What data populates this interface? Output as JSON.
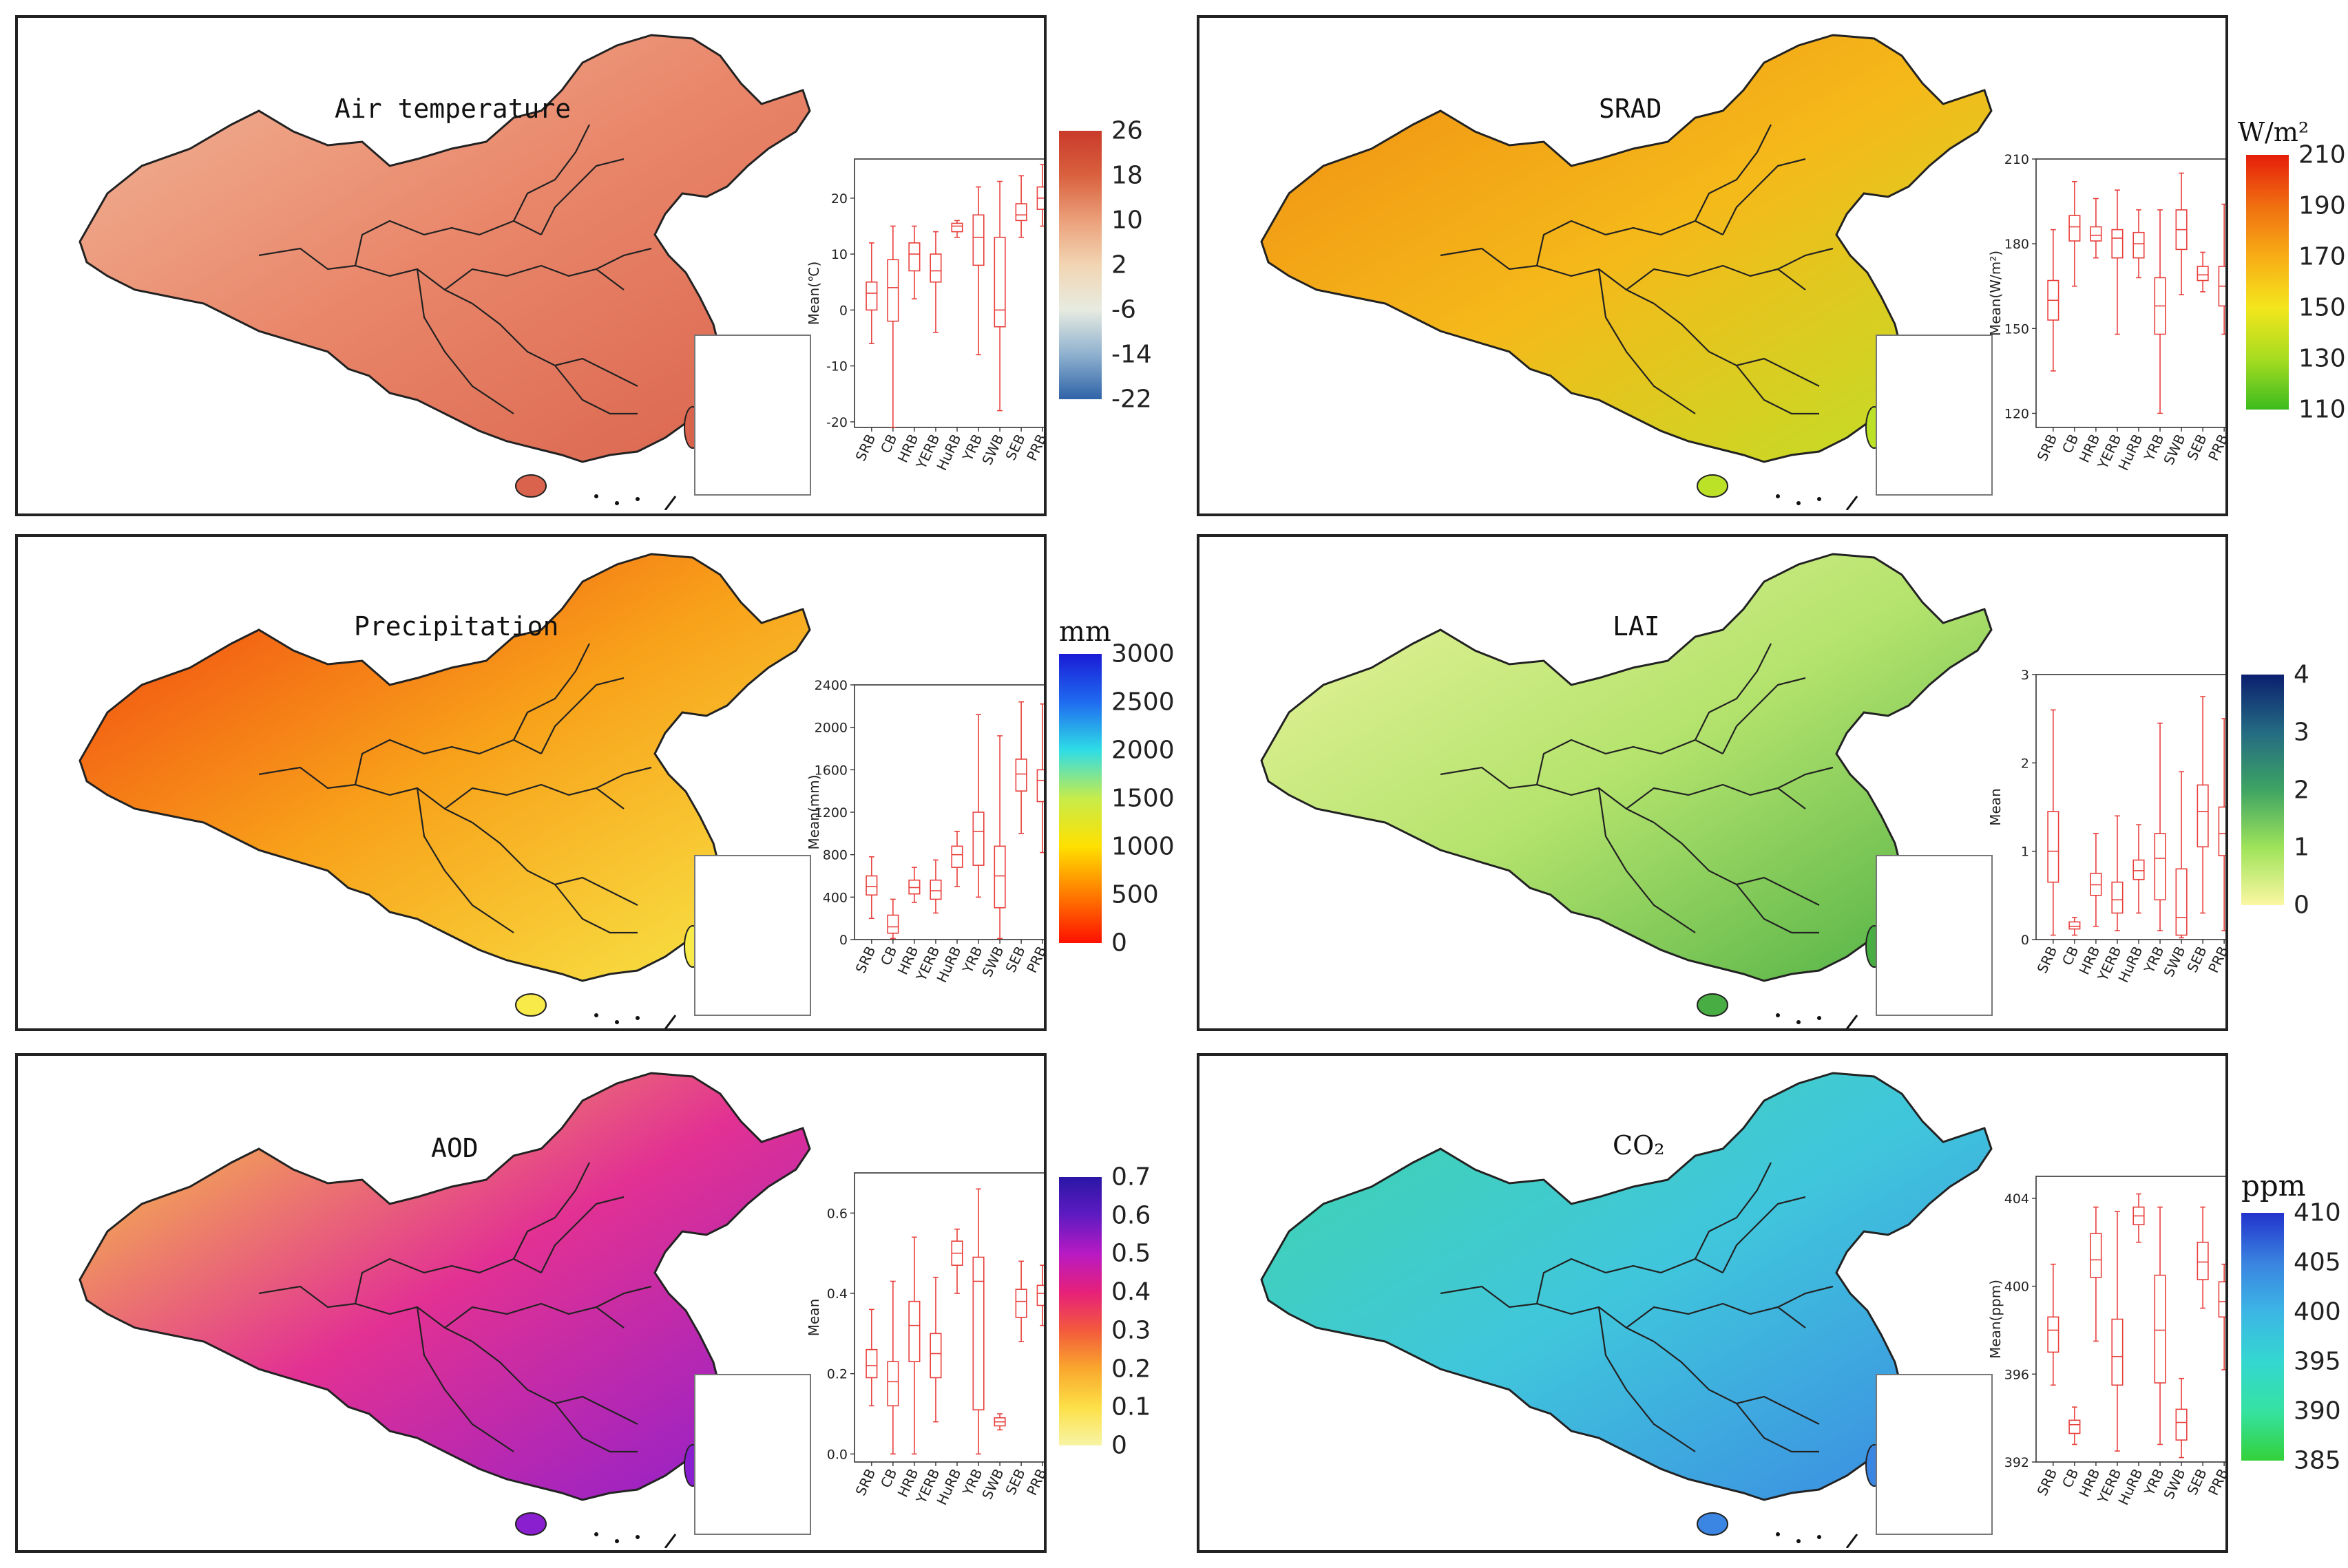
{
  "panels": [
    {
      "id": "air-temperature",
      "title": "Air temperature",
      "legend": {
        "unit": "℃",
        "ticks": [
          "26",
          "18",
          "10",
          "2",
          "-6",
          "-14",
          "-22"
        ],
        "colors": [
          "#2f63a8",
          "#8fb1cf",
          "#e7ebe0",
          "#f2d5b3",
          "#eba07a",
          "#d9613f",
          "#c93a2a"
        ]
      },
      "map_colors": [
        "#f2b89a",
        "#e9866a",
        "#d9634c"
      ]
    },
    {
      "id": "srad",
      "title": "SRAD",
      "legend": {
        "unit": "W/m²",
        "ticks": [
          "210",
          "190",
          "170",
          "150",
          "130",
          "110"
        ],
        "colors": [
          "#3dbb1f",
          "#a7dc20",
          "#f4e61c",
          "#f8ad16",
          "#f06f10",
          "#e61e0b"
        ]
      },
      "map_colors": [
        "#f08b12",
        "#f5b91a",
        "#bce228"
      ]
    },
    {
      "id": "precipitation",
      "title": "Precipitation",
      "legend": {
        "unit": "mm",
        "ticks": [
          "3000",
          "2500",
          "2000",
          "1500",
          "1000",
          "500",
          "0"
        ],
        "colors": [
          "#fe1000",
          "#ff7a00",
          "#ffe000",
          "#c7ec4a",
          "#2fdde6",
          "#1f6bf0",
          "#1a1bd6"
        ]
      },
      "map_colors": [
        "#f03d10",
        "#f8a21a",
        "#f7ea49"
      ]
    },
    {
      "id": "lai",
      "title": "LAI",
      "legend": {
        "unit": "",
        "ticks": [
          "4",
          "3",
          "2",
          "1",
          "0"
        ],
        "colors": [
          "#fbf7a2",
          "#9ee35a",
          "#3ea463",
          "#246b83",
          "#0b1f6e"
        ]
      },
      "map_colors": [
        "#eef5a0",
        "#b4e36d",
        "#48ad42"
      ]
    },
    {
      "id": "aod",
      "title": "AOD",
      "legend": {
        "unit": "",
        "ticks": [
          "0.7",
          "0.6",
          "0.5",
          "0.4",
          "0.3",
          "0.2",
          "0.1",
          "0"
        ],
        "colors": [
          "#f7f4a5",
          "#fde047",
          "#f9a82d",
          "#f35a3c",
          "#e6207a",
          "#b81ac3",
          "#5f1bc1",
          "#2a16a6"
        ]
      },
      "map_colors": [
        "#f8d73b",
        "#e23193",
        "#8a1fd0"
      ]
    },
    {
      "id": "co2",
      "title": "CO₂",
      "legend": {
        "unit": "ppm",
        "ticks": [
          "410",
          "405",
          "400",
          "395",
          "390",
          "385"
        ],
        "colors": [
          "#34d13a",
          "#35e2a2",
          "#34d7d0",
          "#3cb6e5",
          "#3a83e0",
          "#2233cc"
        ]
      },
      "map_colors": [
        "#3fd6a8",
        "#40c6dc",
        "#3b86e2"
      ]
    }
  ],
  "chart_data": [
    {
      "type": "boxplot",
      "panel": "air-temperature",
      "ylabel": "Mean(℃)",
      "yticks": [
        "20",
        "10",
        "0",
        "-10",
        "-20"
      ],
      "ylim": [
        -21,
        27
      ],
      "categories": [
        "SRB",
        "CB",
        "HRB",
        "YERB",
        "HuRB",
        "YRB",
        "SWB",
        "SEB",
        "PRB"
      ],
      "boxes": [
        {
          "whislo": -6,
          "q1": 0,
          "med": 3,
          "q3": 5,
          "whishi": 12
        },
        {
          "whislo": -21,
          "q1": -2,
          "med": 4,
          "q3": 9,
          "whishi": 15
        },
        {
          "whislo": 2,
          "q1": 7,
          "med": 10,
          "q3": 12,
          "whishi": 15
        },
        {
          "whislo": -4,
          "q1": 5,
          "med": 7,
          "q3": 10,
          "whishi": 14
        },
        {
          "whislo": 13,
          "q1": 14,
          "med": 15,
          "q3": 15.5,
          "whishi": 16
        },
        {
          "whislo": -8,
          "q1": 8,
          "med": 13,
          "q3": 17,
          "whishi": 22
        },
        {
          "whislo": -18,
          "q1": -3,
          "med": 0,
          "q3": 13,
          "whishi": 23
        },
        {
          "whislo": 13,
          "q1": 16,
          "med": 17,
          "q3": 19,
          "whishi": 24
        },
        {
          "whislo": 15,
          "q1": 18,
          "med": 20,
          "q3": 22,
          "whishi": 26
        }
      ]
    },
    {
      "type": "boxplot",
      "panel": "srad",
      "ylabel": "Mean(W/m²)",
      "yticks": [
        "210",
        "180",
        "150",
        "120"
      ],
      "ylim": [
        115,
        210
      ],
      "categories": [
        "SRB",
        "CB",
        "HRB",
        "YERB",
        "HuRB",
        "YRB",
        "SWB",
        "SEB",
        "PRB"
      ],
      "boxes": [
        {
          "whislo": 135,
          "q1": 153,
          "med": 160,
          "q3": 167,
          "whishi": 185
        },
        {
          "whislo": 165,
          "q1": 181,
          "med": 186,
          "q3": 190,
          "whishi": 202
        },
        {
          "whislo": 175,
          "q1": 181,
          "med": 183,
          "q3": 186,
          "whishi": 196
        },
        {
          "whislo": 148,
          "q1": 175,
          "med": 182,
          "q3": 185,
          "whishi": 199
        },
        {
          "whislo": 168,
          "q1": 175,
          "med": 180,
          "q3": 184,
          "whishi": 192
        },
        {
          "whislo": 120,
          "q1": 148,
          "med": 158,
          "q3": 168,
          "whishi": 192
        },
        {
          "whislo": 162,
          "q1": 178,
          "med": 185,
          "q3": 192,
          "whishi": 205
        },
        {
          "whislo": 163,
          "q1": 167,
          "med": 169,
          "q3": 172,
          "whishi": 177
        },
        {
          "whislo": 148,
          "q1": 158,
          "med": 165,
          "q3": 172,
          "whishi": 194
        }
      ]
    },
    {
      "type": "boxplot",
      "panel": "precipitation",
      "ylabel": "Mean(mm)",
      "yticks": [
        "2400",
        "2000",
        "1600",
        "1200",
        "800",
        "400",
        "0"
      ],
      "ylim": [
        0,
        2400
      ],
      "categories": [
        "SRB",
        "CB",
        "HRB",
        "YERB",
        "HuRB",
        "YRB",
        "SWB",
        "SEB",
        "PRB"
      ],
      "boxes": [
        {
          "whislo": 200,
          "q1": 420,
          "med": 500,
          "q3": 600,
          "whishi": 780
        },
        {
          "whislo": 10,
          "q1": 60,
          "med": 120,
          "q3": 230,
          "whishi": 380
        },
        {
          "whislo": 350,
          "q1": 430,
          "med": 490,
          "q3": 560,
          "whishi": 680
        },
        {
          "whislo": 250,
          "q1": 380,
          "med": 460,
          "q3": 560,
          "whishi": 750
        },
        {
          "whislo": 500,
          "q1": 680,
          "med": 800,
          "q3": 880,
          "whishi": 1020
        },
        {
          "whislo": 400,
          "q1": 700,
          "med": 1020,
          "q3": 1200,
          "whishi": 2120
        },
        {
          "whislo": 10,
          "q1": 300,
          "med": 600,
          "q3": 880,
          "whishi": 1920
        },
        {
          "whislo": 1000,
          "q1": 1400,
          "med": 1560,
          "q3": 1700,
          "whishi": 2240
        },
        {
          "whislo": 820,
          "q1": 1300,
          "med": 1500,
          "q3": 1600,
          "whishi": 2220
        }
      ]
    },
    {
      "type": "boxplot",
      "panel": "lai",
      "ylabel": "Mean",
      "yticks": [
        "3",
        "2",
        "1",
        "0"
      ],
      "ylim": [
        0,
        3
      ],
      "categories": [
        "SRB",
        "CB",
        "HRB",
        "YERB",
        "HuRB",
        "YRB",
        "SWB",
        "SEB",
        "PRB"
      ],
      "boxes": [
        {
          "whislo": 0.05,
          "q1": 0.65,
          "med": 1.0,
          "q3": 1.45,
          "whishi": 2.6
        },
        {
          "whislo": 0.05,
          "q1": 0.12,
          "med": 0.15,
          "q3": 0.2,
          "whishi": 0.25
        },
        {
          "whislo": 0.15,
          "q1": 0.5,
          "med": 0.62,
          "q3": 0.75,
          "whishi": 1.2
        },
        {
          "whislo": 0.1,
          "q1": 0.3,
          "med": 0.45,
          "q3": 0.65,
          "whishi": 1.4
        },
        {
          "whislo": 0.3,
          "q1": 0.68,
          "med": 0.78,
          "q3": 0.9,
          "whishi": 1.3
        },
        {
          "whislo": 0.1,
          "q1": 0.45,
          "med": 0.92,
          "q3": 1.2,
          "whishi": 2.45
        },
        {
          "whislo": 0.02,
          "q1": 0.05,
          "med": 0.25,
          "q3": 0.8,
          "whishi": 1.9
        },
        {
          "whislo": 0.3,
          "q1": 1.05,
          "med": 1.45,
          "q3": 1.75,
          "whishi": 2.75
        },
        {
          "whislo": 0.1,
          "q1": 0.95,
          "med": 1.2,
          "q3": 1.5,
          "whishi": 2.5
        }
      ]
    },
    {
      "type": "boxplot",
      "panel": "aod",
      "ylabel": "Mean",
      "yticks": [
        "0.6",
        "0.4",
        "0.2",
        "0.0"
      ],
      "ylim": [
        -0.02,
        0.7
      ],
      "categories": [
        "SRB",
        "CB",
        "HRB",
        "YERB",
        "HuRB",
        "YRB",
        "SWB",
        "SEB",
        "PRB"
      ],
      "boxes": [
        {
          "whislo": 0.12,
          "q1": 0.19,
          "med": 0.22,
          "q3": 0.26,
          "whishi": 0.36
        },
        {
          "whislo": 0.0,
          "q1": 0.12,
          "med": 0.18,
          "q3": 0.23,
          "whishi": 0.43
        },
        {
          "whislo": 0.0,
          "q1": 0.23,
          "med": 0.32,
          "q3": 0.38,
          "whishi": 0.54
        },
        {
          "whislo": 0.08,
          "q1": 0.19,
          "med": 0.25,
          "q3": 0.3,
          "whishi": 0.44
        },
        {
          "whislo": 0.4,
          "q1": 0.47,
          "med": 0.5,
          "q3": 0.53,
          "whishi": 0.56
        },
        {
          "whislo": 0.0,
          "q1": 0.11,
          "med": 0.43,
          "q3": 0.49,
          "whishi": 0.66
        },
        {
          "whislo": 0.06,
          "q1": 0.07,
          "med": 0.08,
          "q3": 0.09,
          "whishi": 0.1
        },
        {
          "whislo": 0.28,
          "q1": 0.34,
          "med": 0.38,
          "q3": 0.41,
          "whishi": 0.48
        },
        {
          "whislo": 0.32,
          "q1": 0.37,
          "med": 0.4,
          "q3": 0.42,
          "whishi": 0.47
        }
      ]
    },
    {
      "type": "boxplot",
      "panel": "co2",
      "ylabel": "Mean(ppm)",
      "yticks": [
        "404",
        "400",
        "396",
        "392"
      ],
      "ylim": [
        392,
        405
      ],
      "categories": [
        "SRB",
        "CB",
        "HRB",
        "YERB",
        "HuRB",
        "YRB",
        "SWB",
        "SEB",
        "PRB"
      ],
      "boxes": [
        {
          "whislo": 395.5,
          "q1": 397.0,
          "med": 398.0,
          "q3": 398.6,
          "whishi": 401.0
        },
        {
          "whislo": 392.8,
          "q1": 393.3,
          "med": 393.7,
          "q3": 393.9,
          "whishi": 394.5
        },
        {
          "whislo": 397.5,
          "q1": 400.4,
          "med": 401.2,
          "q3": 402.4,
          "whishi": 403.6
        },
        {
          "whislo": 392.5,
          "q1": 395.5,
          "med": 396.8,
          "q3": 398.5,
          "whishi": 403.4
        },
        {
          "whislo": 402.0,
          "q1": 402.8,
          "med": 403.2,
          "q3": 403.6,
          "whishi": 404.2
        },
        {
          "whislo": 392.8,
          "q1": 395.6,
          "med": 398.0,
          "q3": 400.5,
          "whishi": 403.6
        },
        {
          "whislo": 392.2,
          "q1": 393.0,
          "med": 393.8,
          "q3": 394.4,
          "whishi": 395.8
        },
        {
          "whislo": 399.0,
          "q1": 400.3,
          "med": 401.1,
          "q3": 402.0,
          "whishi": 403.6
        },
        {
          "whislo": 396.2,
          "q1": 398.6,
          "med": 399.3,
          "q3": 400.2,
          "whishi": 401.0
        }
      ]
    }
  ]
}
